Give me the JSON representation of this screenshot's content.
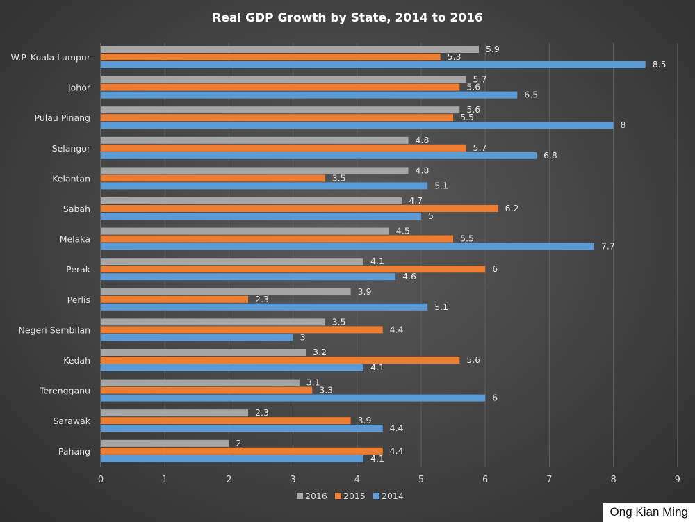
{
  "chart_data": {
    "type": "bar",
    "orientation": "horizontal",
    "title": "Real GDP Growth by State, 2014 to 2016",
    "categories": [
      "W.P. Kuala Lumpur",
      "Johor",
      "Pulau Pinang",
      "Selangor",
      "Kelantan",
      "Sabah",
      "Melaka",
      "Perak",
      "Perlis",
      "Negeri Sembilan",
      "Kedah",
      "Terengganu",
      "Sarawak",
      "Pahang"
    ],
    "series": [
      {
        "name": "2016",
        "color": "#a6a6a6",
        "values": [
          5.9,
          5.7,
          5.6,
          4.8,
          4.8,
          4.7,
          4.5,
          4.1,
          3.9,
          3.5,
          3.2,
          3.1,
          2.3,
          2
        ]
      },
      {
        "name": "2015",
        "color": "#ed7d31",
        "values": [
          5.3,
          5.6,
          5.5,
          5.7,
          3.5,
          6.2,
          5.5,
          6,
          2.3,
          4.4,
          5.6,
          3.3,
          3.9,
          4.4
        ]
      },
      {
        "name": "2014",
        "color": "#5b9bd5",
        "values": [
          8.5,
          6.5,
          8,
          6.8,
          5.1,
          5,
          7.7,
          4.6,
          5.1,
          3,
          4.1,
          6,
          4.4,
          4.1
        ]
      }
    ],
    "xlim": [
      0,
      9
    ],
    "xticks": [
      "0",
      "1",
      "2",
      "3",
      "4",
      "5",
      "6",
      "7",
      "8",
      "9"
    ],
    "grid": "vertical",
    "legend": "bottom",
    "data_labels": true
  },
  "credit": "Ong Kian Ming"
}
